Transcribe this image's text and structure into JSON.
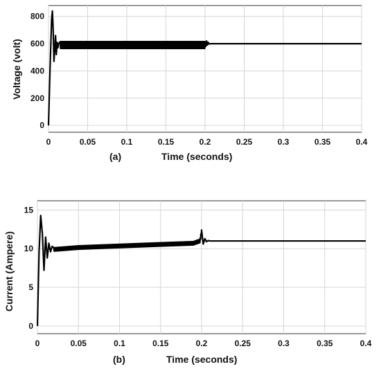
{
  "chart_data": [
    {
      "type": "line",
      "panel_label": "(a)",
      "xlabel": "Time (seconds)",
      "ylabel": "Voltage (volt)",
      "xlim": [
        0,
        0.4
      ],
      "ylim": [
        -50,
        880
      ],
      "xticks": [
        0,
        0.05,
        0.1,
        0.15,
        0.2,
        0.25,
        0.3,
        0.35,
        0.4
      ],
      "xtick_labels": [
        "0",
        "0.05",
        "0.1",
        "0.15",
        "0.2",
        "0.25",
        "0.3",
        "0.35",
        "0.4"
      ],
      "yticks": [
        0,
        200,
        400,
        600,
        800
      ],
      "ytick_labels": [
        "0",
        "200",
        "400",
        "600",
        "800"
      ],
      "grid": true,
      "line_color": "#000000",
      "series": [
        {
          "x": [
            0,
            0.002,
            0.004,
            0.005,
            0.006,
            0.007,
            0.008,
            0.009,
            0.01,
            0.011,
            0.012,
            0.013,
            0.015,
            0.02,
            0.05,
            0.1,
            0.15,
            0.19,
            0.199,
            0.2,
            0.201,
            0.202,
            0.203,
            0.204,
            0.205,
            0.207,
            0.21,
            0.25,
            0.3,
            0.35,
            0.4
          ],
          "y": [
            0,
            420,
            780,
            840,
            700,
            470,
            560,
            660,
            520,
            610,
            570,
            600,
            585,
            590,
            590,
            590,
            590,
            592,
            620,
            650,
            580,
            620,
            590,
            610,
            598,
            600,
            600,
            600,
            600,
            600,
            600
          ]
        }
      ],
      "ripple": {
        "from": 0.015,
        "to": 0.2,
        "amplitude": 25,
        "center": 590
      }
    },
    {
      "type": "line",
      "panel_label": "(b)",
      "xlabel": "Time (seconds)",
      "ylabel": "Current (Ampere)",
      "xlim": [
        0,
        0.4
      ],
      "ylim": [
        -1,
        16.2
      ],
      "xticks": [
        0,
        0.05,
        0.1,
        0.15,
        0.2,
        0.25,
        0.3,
        0.35,
        0.4
      ],
      "xtick_labels": [
        "0",
        "0.05",
        "0.1",
        "0.15",
        "0.2",
        "0.25",
        "0.3",
        "0.35",
        "0.4"
      ],
      "yticks": [
        0,
        5,
        10,
        15
      ],
      "ytick_labels": [
        "0",
        "5",
        "10",
        "15"
      ],
      "grid": true,
      "line_color": "#000000",
      "series": [
        {
          "x": [
            0,
            0.002,
            0.004,
            0.006,
            0.008,
            0.01,
            0.012,
            0.014,
            0.016,
            0.018,
            0.02,
            0.05,
            0.1,
            0.15,
            0.19,
            0.198,
            0.2,
            0.202,
            0.204,
            0.206,
            0.208,
            0.21,
            0.25,
            0.3,
            0.35,
            0.4
          ],
          "y": [
            0,
            9.5,
            14.3,
            12.0,
            7.2,
            11.5,
            8.8,
            10.7,
            9.6,
            10.3,
            9.9,
            10.15,
            10.35,
            10.55,
            10.7,
            11.0,
            12.2,
            10.6,
            11.3,
            10.9,
            11.05,
            11.0,
            11.0,
            11.0,
            11.0,
            11.0
          ]
        }
      ],
      "ripple": {
        "from": 0.02,
        "to": 0.2,
        "amplitude": 0.22,
        "center": null
      }
    }
  ]
}
